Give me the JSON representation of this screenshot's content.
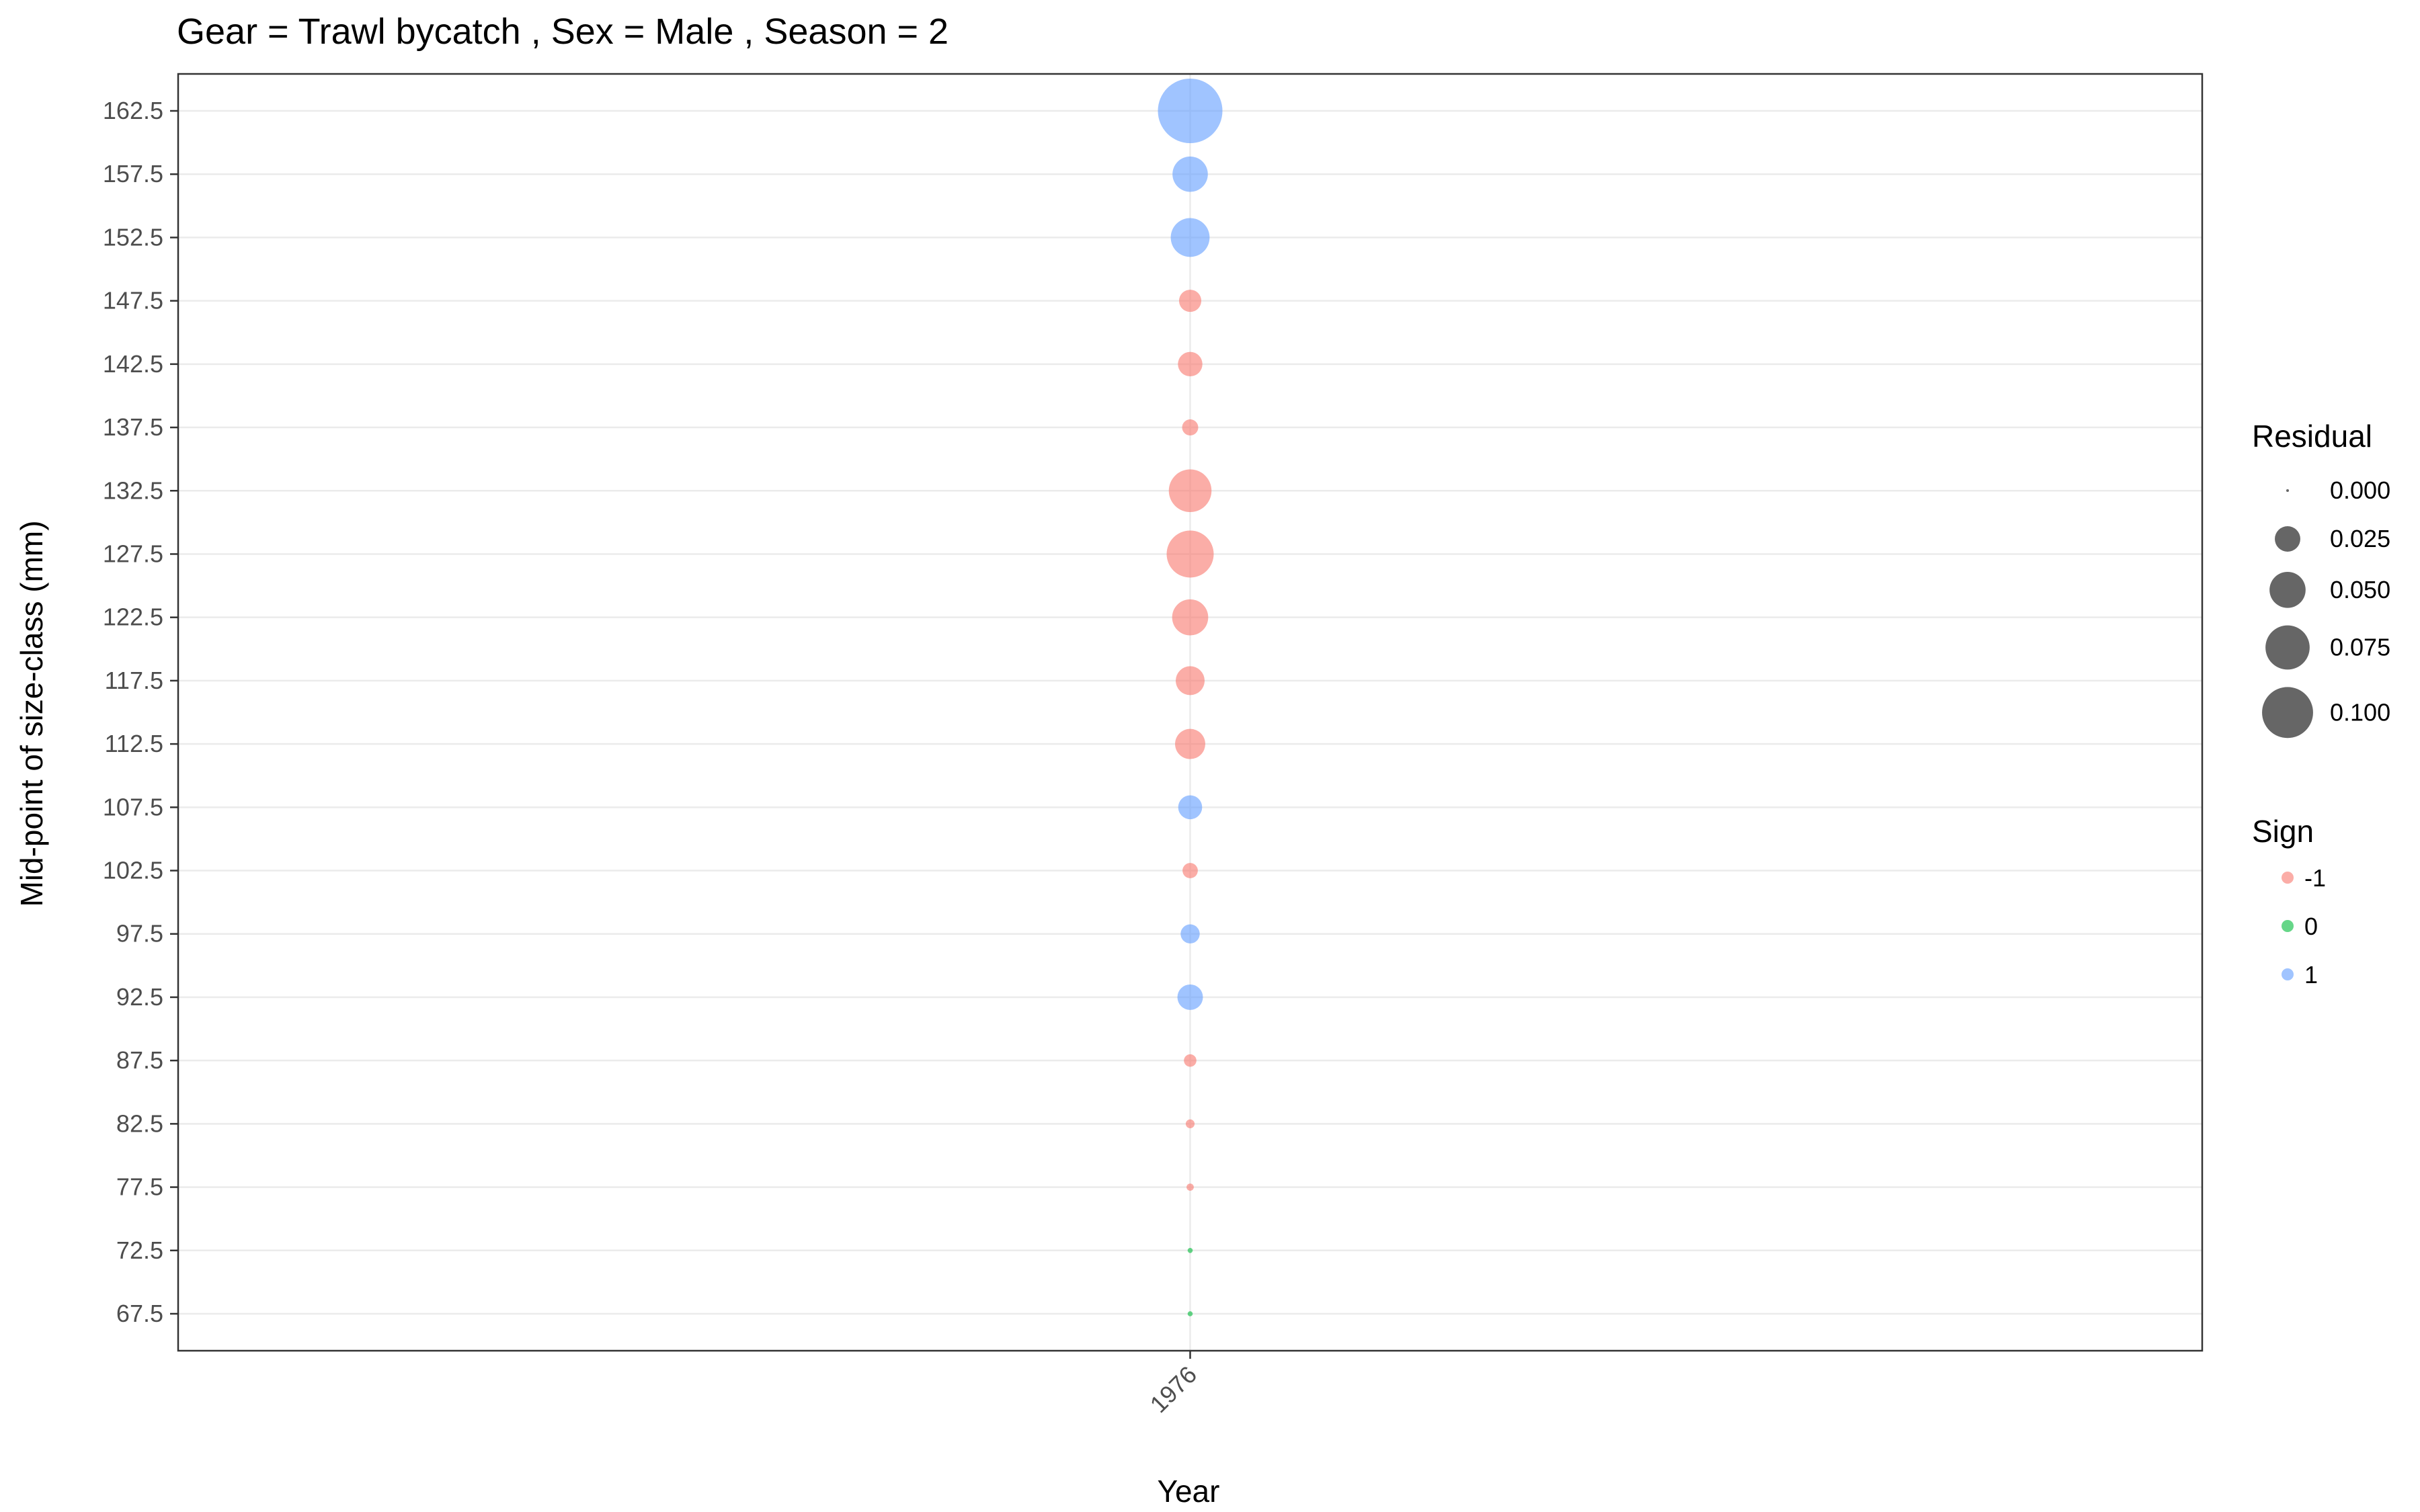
{
  "chart_data": {
    "type": "scatter",
    "title": "Gear = Trawl bycatch , Sex = Male , Season = 2",
    "xlabel": "Year",
    "ylabel": "Mid-point of size-class (mm)",
    "x_categories": [
      "1976"
    ],
    "y_ticks": [
      "67.5",
      "72.5",
      "77.5",
      "82.5",
      "87.5",
      "92.5",
      "97.5",
      "102.5",
      "107.5",
      "112.5",
      "117.5",
      "122.5",
      "127.5",
      "132.5",
      "137.5",
      "142.5",
      "147.5",
      "152.5",
      "157.5",
      "162.5"
    ],
    "ylim": [
      67.5,
      162.5
    ],
    "grid": true,
    "points": [
      {
        "x": "1976",
        "y": 67.5,
        "residual": 0.001,
        "sign": 0
      },
      {
        "x": "1976",
        "y": 72.5,
        "residual": 0.001,
        "sign": 0
      },
      {
        "x": "1976",
        "y": 77.5,
        "residual": 0.002,
        "sign": -1
      },
      {
        "x": "1976",
        "y": 82.5,
        "residual": 0.003,
        "sign": -1
      },
      {
        "x": "1976",
        "y": 87.5,
        "residual": 0.006,
        "sign": -1
      },
      {
        "x": "1976",
        "y": 92.5,
        "residual": 0.025,
        "sign": 1
      },
      {
        "x": "1976",
        "y": 97.5,
        "residual": 0.014,
        "sign": 1
      },
      {
        "x": "1976",
        "y": 102.5,
        "residual": 0.009,
        "sign": -1
      },
      {
        "x": "1976",
        "y": 107.5,
        "residual": 0.022,
        "sign": 1
      },
      {
        "x": "1976",
        "y": 112.5,
        "residual": 0.035,
        "sign": -1
      },
      {
        "x": "1976",
        "y": 117.5,
        "residual": 0.032,
        "sign": -1
      },
      {
        "x": "1976",
        "y": 122.5,
        "residual": 0.05,
        "sign": -1
      },
      {
        "x": "1976",
        "y": 127.5,
        "residual": 0.085,
        "sign": -1
      },
      {
        "x": "1976",
        "y": 132.5,
        "residual": 0.07,
        "sign": -1
      },
      {
        "x": "1976",
        "y": 137.5,
        "residual": 0.01,
        "sign": -1
      },
      {
        "x": "1976",
        "y": 142.5,
        "residual": 0.023,
        "sign": -1
      },
      {
        "x": "1976",
        "y": 147.5,
        "residual": 0.019,
        "sign": -1
      },
      {
        "x": "1976",
        "y": 152.5,
        "residual": 0.058,
        "sign": 1
      },
      {
        "x": "1976",
        "y": 157.5,
        "residual": 0.048,
        "sign": 1
      },
      {
        "x": "1976",
        "y": 162.5,
        "residual": 0.16,
        "sign": 1
      }
    ],
    "legend_size": {
      "title": "Residual",
      "breaks": [
        0.0,
        0.025,
        0.05,
        0.075,
        0.1
      ],
      "labels": [
        "0.000",
        "0.025",
        "0.050",
        "0.075",
        "0.100"
      ]
    },
    "legend_color": {
      "title": "Sign",
      "entries": [
        {
          "label": "-1",
          "sign": -1,
          "color": "#F8766D"
        },
        {
          "label": "0",
          "sign": 0,
          "color": "#00BA38"
        },
        {
          "label": "1",
          "sign": 1,
          "color": "#619CFF"
        }
      ]
    },
    "legend_placement": "right",
    "point_alpha": 0.6
  }
}
